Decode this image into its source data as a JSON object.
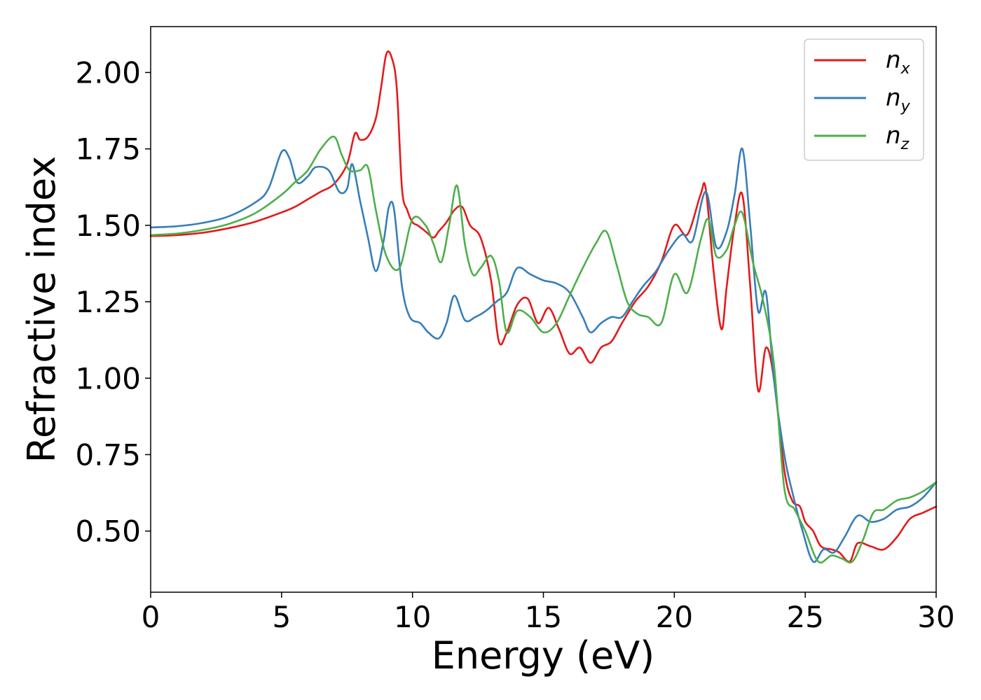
{
  "chart_data": {
    "type": "line",
    "xlabel": "Energy (eV)",
    "ylabel": "Refractive index",
    "xlim": [
      0,
      30
    ],
    "ylim": [
      0.3,
      2.15
    ],
    "xticks": [
      0,
      5,
      10,
      15,
      20,
      25,
      30
    ],
    "xtick_labels": [
      "0",
      "5",
      "10",
      "15",
      "20",
      "25",
      "30"
    ],
    "yticks": [
      0.5,
      0.75,
      1.0,
      1.25,
      1.5,
      1.75,
      2.0
    ],
    "ytick_labels": [
      "0.50",
      "0.75",
      "1.00",
      "1.25",
      "1.50",
      "1.75",
      "2.00"
    ],
    "grid": false,
    "legend_position": "top-right",
    "series": [
      {
        "name": "n_x",
        "label_main": "n",
        "label_sub": "x",
        "color": "#e41a1c",
        "points": [
          [
            0,
            1.465
          ],
          [
            1,
            1.468
          ],
          [
            2,
            1.476
          ],
          [
            3,
            1.491
          ],
          [
            4,
            1.512
          ],
          [
            5,
            1.542
          ],
          [
            5.5,
            1.56
          ],
          [
            6,
            1.585
          ],
          [
            6.5,
            1.61
          ],
          [
            7,
            1.635
          ],
          [
            7.5,
            1.7
          ],
          [
            7.8,
            1.8
          ],
          [
            8,
            1.78
          ],
          [
            8.3,
            1.79
          ],
          [
            8.6,
            1.85
          ],
          [
            8.8,
            1.95
          ],
          [
            9,
            2.06
          ],
          [
            9.2,
            2.05
          ],
          [
            9.4,
            1.95
          ],
          [
            9.6,
            1.62
          ],
          [
            9.8,
            1.55
          ],
          [
            10,
            1.51
          ],
          [
            10.2,
            1.5
          ],
          [
            10.5,
            1.48
          ],
          [
            10.8,
            1.46
          ],
          [
            11,
            1.48
          ],
          [
            11.3,
            1.51
          ],
          [
            11.6,
            1.55
          ],
          [
            11.9,
            1.56
          ],
          [
            12.2,
            1.5
          ],
          [
            12.6,
            1.46
          ],
          [
            13,
            1.32
          ],
          [
            13.3,
            1.12
          ],
          [
            13.6,
            1.15
          ],
          [
            14,
            1.24
          ],
          [
            14.4,
            1.26
          ],
          [
            14.8,
            1.18
          ],
          [
            15.2,
            1.23
          ],
          [
            15.6,
            1.16
          ],
          [
            16,
            1.08
          ],
          [
            16.4,
            1.1
          ],
          [
            16.8,
            1.05
          ],
          [
            17.2,
            1.1
          ],
          [
            17.6,
            1.12
          ],
          [
            18,
            1.18
          ],
          [
            18.5,
            1.25
          ],
          [
            19,
            1.3
          ],
          [
            19.5,
            1.38
          ],
          [
            20,
            1.5
          ],
          [
            20.5,
            1.47
          ],
          [
            21,
            1.6
          ],
          [
            21.2,
            1.62
          ],
          [
            21.5,
            1.35
          ],
          [
            21.8,
            1.16
          ],
          [
            22,
            1.3
          ],
          [
            22.3,
            1.5
          ],
          [
            22.6,
            1.6
          ],
          [
            22.9,
            1.3
          ],
          [
            23.2,
            0.96
          ],
          [
            23.5,
            1.1
          ],
          [
            23.8,
            1.0
          ],
          [
            24.2,
            0.7
          ],
          [
            24.5,
            0.6
          ],
          [
            24.8,
            0.58
          ],
          [
            25,
            0.53
          ],
          [
            25.3,
            0.5
          ],
          [
            25.6,
            0.45
          ],
          [
            26,
            0.44
          ],
          [
            26.3,
            0.43
          ],
          [
            26.7,
            0.4
          ],
          [
            27,
            0.46
          ],
          [
            27.5,
            0.45
          ],
          [
            28,
            0.44
          ],
          [
            28.5,
            0.48
          ],
          [
            29,
            0.54
          ],
          [
            29.5,
            0.56
          ],
          [
            30,
            0.58
          ]
        ]
      },
      {
        "name": "n_y",
        "label_main": "n",
        "label_sub": "y",
        "color": "#377eb8",
        "points": [
          [
            0,
            1.493
          ],
          [
            1,
            1.497
          ],
          [
            2,
            1.508
          ],
          [
            3,
            1.53
          ],
          [
            4,
            1.575
          ],
          [
            4.5,
            1.62
          ],
          [
            5,
            1.74
          ],
          [
            5.3,
            1.72
          ],
          [
            5.6,
            1.64
          ],
          [
            6,
            1.66
          ],
          [
            6.3,
            1.69
          ],
          [
            6.8,
            1.68
          ],
          [
            7.2,
            1.61
          ],
          [
            7.5,
            1.62
          ],
          [
            7.7,
            1.7
          ],
          [
            8,
            1.58
          ],
          [
            8.3,
            1.46
          ],
          [
            8.6,
            1.35
          ],
          [
            8.9,
            1.45
          ],
          [
            9.1,
            1.56
          ],
          [
            9.3,
            1.55
          ],
          [
            9.6,
            1.3
          ],
          [
            9.9,
            1.2
          ],
          [
            10.3,
            1.18
          ],
          [
            10.6,
            1.15
          ],
          [
            11,
            1.13
          ],
          [
            11.3,
            1.18
          ],
          [
            11.6,
            1.27
          ],
          [
            12,
            1.19
          ],
          [
            12.4,
            1.2
          ],
          [
            12.8,
            1.22
          ],
          [
            13.2,
            1.25
          ],
          [
            13.6,
            1.28
          ],
          [
            14,
            1.36
          ],
          [
            14.5,
            1.34
          ],
          [
            15,
            1.32
          ],
          [
            15.5,
            1.31
          ],
          [
            16,
            1.28
          ],
          [
            16.5,
            1.2
          ],
          [
            16.8,
            1.15
          ],
          [
            17.2,
            1.18
          ],
          [
            17.6,
            1.2
          ],
          [
            18,
            1.2
          ],
          [
            18.4,
            1.25
          ],
          [
            18.8,
            1.3
          ],
          [
            19.3,
            1.35
          ],
          [
            19.8,
            1.42
          ],
          [
            20.3,
            1.47
          ],
          [
            20.7,
            1.45
          ],
          [
            21.2,
            1.61
          ],
          [
            21.6,
            1.43
          ],
          [
            22,
            1.48
          ],
          [
            22.3,
            1.6
          ],
          [
            22.6,
            1.75
          ],
          [
            22.9,
            1.5
          ],
          [
            23.2,
            1.22
          ],
          [
            23.5,
            1.28
          ],
          [
            23.8,
            1.0
          ],
          [
            24.2,
            0.75
          ],
          [
            24.5,
            0.63
          ],
          [
            24.9,
            0.5
          ],
          [
            25.3,
            0.4
          ],
          [
            25.7,
            0.44
          ],
          [
            26.1,
            0.43
          ],
          [
            26.5,
            0.48
          ],
          [
            27,
            0.55
          ],
          [
            27.5,
            0.53
          ],
          [
            28,
            0.54
          ],
          [
            28.5,
            0.57
          ],
          [
            29,
            0.58
          ],
          [
            29.5,
            0.61
          ],
          [
            30,
            0.66
          ]
        ]
      },
      {
        "name": "n_z",
        "label_main": "n",
        "label_sub": "z",
        "color": "#4daf4a",
        "points": [
          [
            0,
            1.468
          ],
          [
            1,
            1.473
          ],
          [
            2,
            1.485
          ],
          [
            3,
            1.505
          ],
          [
            4,
            1.54
          ],
          [
            5,
            1.6
          ],
          [
            5.5,
            1.64
          ],
          [
            6,
            1.68
          ],
          [
            6.5,
            1.75
          ],
          [
            7,
            1.79
          ],
          [
            7.3,
            1.73
          ],
          [
            7.6,
            1.68
          ],
          [
            8,
            1.68
          ],
          [
            8.3,
            1.69
          ],
          [
            8.6,
            1.55
          ],
          [
            9,
            1.4
          ],
          [
            9.5,
            1.36
          ],
          [
            10,
            1.52
          ],
          [
            10.5,
            1.5
          ],
          [
            10.8,
            1.44
          ],
          [
            11.1,
            1.38
          ],
          [
            11.4,
            1.5
          ],
          [
            11.7,
            1.63
          ],
          [
            12,
            1.44
          ],
          [
            12.3,
            1.34
          ],
          [
            12.6,
            1.36
          ],
          [
            13,
            1.4
          ],
          [
            13.3,
            1.32
          ],
          [
            13.6,
            1.15
          ],
          [
            14,
            1.22
          ],
          [
            14.5,
            1.2
          ],
          [
            15,
            1.15
          ],
          [
            15.5,
            1.18
          ],
          [
            16,
            1.27
          ],
          [
            16.5,
            1.36
          ],
          [
            17,
            1.44
          ],
          [
            17.4,
            1.48
          ],
          [
            17.8,
            1.37
          ],
          [
            18.2,
            1.25
          ],
          [
            18.6,
            1.21
          ],
          [
            19,
            1.2
          ],
          [
            19.5,
            1.18
          ],
          [
            20,
            1.34
          ],
          [
            20.5,
            1.28
          ],
          [
            21,
            1.45
          ],
          [
            21.3,
            1.52
          ],
          [
            21.6,
            1.4
          ],
          [
            22,
            1.42
          ],
          [
            22.3,
            1.5
          ],
          [
            22.6,
            1.54
          ],
          [
            23,
            1.38
          ],
          [
            23.4,
            1.25
          ],
          [
            23.8,
            1.05
          ],
          [
            24.2,
            0.64
          ],
          [
            24.6,
            0.57
          ],
          [
            25,
            0.5
          ],
          [
            25.5,
            0.4
          ],
          [
            26,
            0.42
          ],
          [
            26.4,
            0.41
          ],
          [
            26.8,
            0.4
          ],
          [
            27.2,
            0.47
          ],
          [
            27.6,
            0.56
          ],
          [
            28,
            0.57
          ],
          [
            28.5,
            0.6
          ],
          [
            29,
            0.61
          ],
          [
            29.5,
            0.63
          ],
          [
            30,
            0.66
          ]
        ]
      }
    ]
  }
}
